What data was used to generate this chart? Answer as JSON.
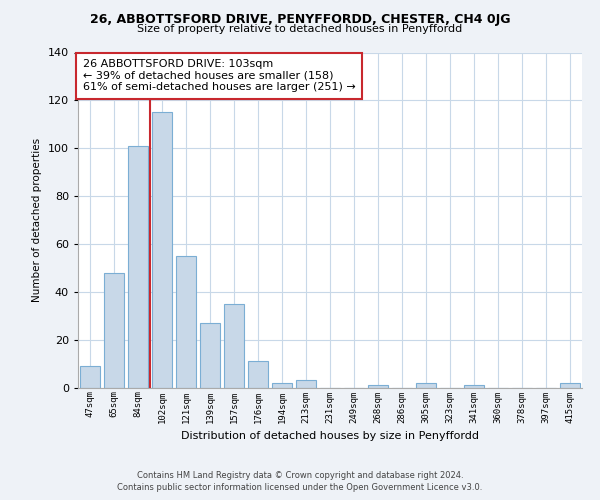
{
  "title": "26, ABBOTTSFORD DRIVE, PENYFFORDD, CHESTER, CH4 0JG",
  "subtitle": "Size of property relative to detached houses in Penyffordd",
  "xlabel": "Distribution of detached houses by size in Penyffordd",
  "ylabel": "Number of detached properties",
  "bar_labels": [
    "47sqm",
    "65sqm",
    "84sqm",
    "102sqm",
    "121sqm",
    "139sqm",
    "157sqm",
    "176sqm",
    "194sqm",
    "213sqm",
    "231sqm",
    "249sqm",
    "268sqm",
    "286sqm",
    "305sqm",
    "323sqm",
    "341sqm",
    "360sqm",
    "378sqm",
    "397sqm",
    "415sqm"
  ],
  "bar_values": [
    9,
    48,
    101,
    115,
    55,
    27,
    35,
    11,
    2,
    3,
    0,
    0,
    1,
    0,
    2,
    0,
    1,
    0,
    0,
    0,
    2
  ],
  "bar_color": "#c8d8e8",
  "bar_edge_color": "#7baed4",
  "vline_color": "#c8282e",
  "vline_x": 2.5,
  "ylim": [
    0,
    140
  ],
  "yticks": [
    0,
    20,
    40,
    60,
    80,
    100,
    120,
    140
  ],
  "annotation_text": "26 ABBOTTSFORD DRIVE: 103sqm\n← 39% of detached houses are smaller (158)\n61% of semi-detached houses are larger (251) →",
  "annotation_box_color": "#ffffff",
  "annotation_border_color": "#c8282e",
  "footer_line1": "Contains HM Land Registry data © Crown copyright and database right 2024.",
  "footer_line2": "Contains public sector information licensed under the Open Government Licence v3.0.",
  "bg_color": "#eef2f7",
  "plot_bg_color": "#ffffff",
  "grid_color": "#c8d8e8"
}
